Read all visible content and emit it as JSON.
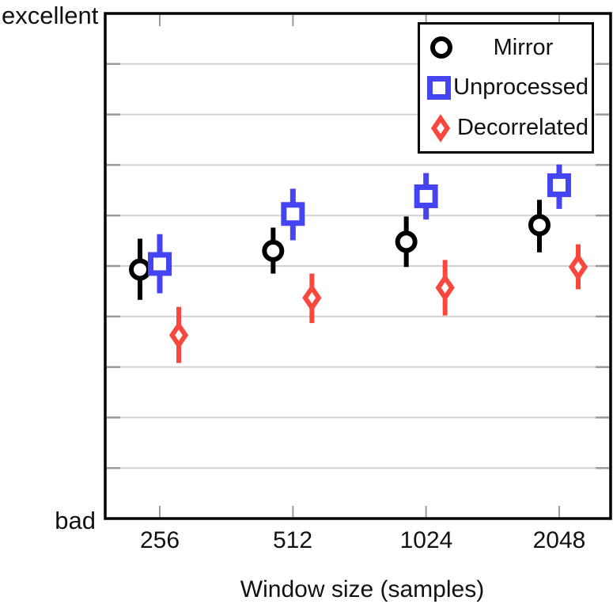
{
  "chart_data": {
    "type": "scatter",
    "title": "",
    "xlabel": "Window size (samples)",
    "ylabel": "",
    "categories": [
      "256",
      "512",
      "1024",
      "2048"
    ],
    "y_axis": {
      "top_label": "excellent",
      "bottom_label": "bad",
      "min": 0,
      "max": 10,
      "gridline_step": 1,
      "grid": true
    },
    "series": [
      {
        "name": "Mirror",
        "marker": "circle",
        "color": "#000000",
        "values": [
          4.93,
          5.3,
          5.48,
          5.81
        ],
        "err_low": [
          4.33,
          4.85,
          4.98,
          5.27
        ],
        "err_high": [
          5.54,
          5.76,
          5.98,
          6.31
        ]
      },
      {
        "name": "Unprocessed",
        "marker": "square",
        "color": "#4444f2",
        "values": [
          5.04,
          6.03,
          6.38,
          6.6
        ],
        "err_low": [
          4.46,
          5.51,
          5.92,
          6.13
        ],
        "err_high": [
          5.63,
          6.53,
          6.84,
          7.01
        ]
      },
      {
        "name": "Decorrelated",
        "marker": "diamond",
        "color": "#f9473d",
        "values": [
          3.63,
          4.37,
          4.57,
          4.98
        ],
        "err_low": [
          3.08,
          3.87,
          4.02,
          4.54
        ],
        "err_high": [
          4.19,
          4.85,
          5.12,
          5.43
        ]
      }
    ],
    "legend": {
      "position": "top-right",
      "border_color": "#000000",
      "background": "#ffffff"
    },
    "grid_color": "#d2d2d2",
    "tick_color": "#9b9b9b",
    "axis_color": "#000000"
  }
}
